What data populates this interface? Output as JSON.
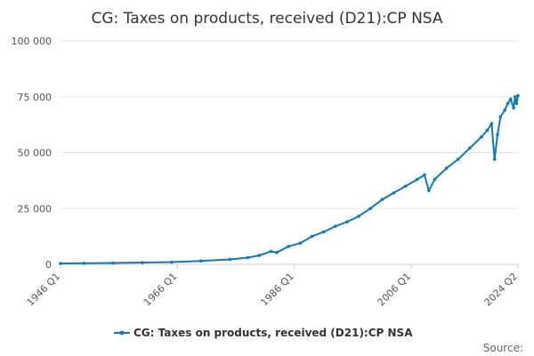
{
  "chart_data": {
    "type": "line",
    "title": "CG: Taxes on products, received (D21):CP NSA",
    "xlabel": "",
    "ylabel": "",
    "ylim": [
      0,
      100000
    ],
    "yticks": [
      {
        "value": 0,
        "label": "0"
      },
      {
        "value": 25000,
        "label": "25 000"
      },
      {
        "value": 50000,
        "label": "50 000"
      },
      {
        "value": 75000,
        "label": "75 000"
      },
      {
        "value": 100000,
        "label": "100 000"
      }
    ],
    "xlim": [
      "1946 Q1",
      "2024 Q2"
    ],
    "xticks": [
      "1946 Q1",
      "1966 Q1",
      "1986 Q1",
      "2006 Q1",
      "2024 Q2"
    ],
    "grid": true,
    "legend": "bottom",
    "source_label": "Source:",
    "colors": {
      "series": "#0f7bba",
      "grid": "#e6e6e6",
      "axis": "#cccccc"
    },
    "series": [
      {
        "name": "CG: Taxes on products, received (D21):CP NSA",
        "points": [
          [
            "1946 Q1",
            400
          ],
          [
            "1950 Q1",
            500
          ],
          [
            "1955 Q1",
            600
          ],
          [
            "1960 Q1",
            800
          ],
          [
            "1965 Q1",
            1000
          ],
          [
            "1970 Q1",
            1500
          ],
          [
            "1975 Q1",
            2200
          ],
          [
            "1978 Q1",
            3000
          ],
          [
            "1980 Q1",
            4000
          ],
          [
            "1982 Q1",
            5800
          ],
          [
            "1983 Q1",
            5300
          ],
          [
            "1985 Q1",
            8000
          ],
          [
            "1987 Q1",
            9500
          ],
          [
            "1989 Q1",
            12500
          ],
          [
            "1991 Q1",
            14500
          ],
          [
            "1993 Q1",
            17000
          ],
          [
            "1995 Q1",
            19000
          ],
          [
            "1997 Q1",
            21500
          ],
          [
            "1999 Q1",
            25000
          ],
          [
            "2001 Q1",
            29000
          ],
          [
            "2003 Q1",
            32000
          ],
          [
            "2005 Q1",
            35000
          ],
          [
            "2007 Q1",
            38000
          ],
          [
            "2008 Q2",
            40000
          ],
          [
            "2009 Q1",
            33000
          ],
          [
            "2010 Q1",
            38000
          ],
          [
            "2012 Q1",
            43000
          ],
          [
            "2014 Q1",
            47000
          ],
          [
            "2016 Q1",
            52000
          ],
          [
            "2018 Q1",
            57000
          ],
          [
            "2019 Q1",
            60000
          ],
          [
            "2019 Q4",
            63000
          ],
          [
            "2020 Q2",
            47000
          ],
          [
            "2020 Q4",
            58000
          ],
          [
            "2021 Q2",
            66000
          ],
          [
            "2022 Q1",
            69000
          ],
          [
            "2022 Q3",
            72000
          ],
          [
            "2023 Q1",
            74000
          ],
          [
            "2023 Q3",
            70000
          ],
          [
            "2023 Q4",
            75000
          ],
          [
            "2024 Q1",
            72000
          ],
          [
            "2024 Q2",
            75500
          ]
        ]
      }
    ]
  }
}
